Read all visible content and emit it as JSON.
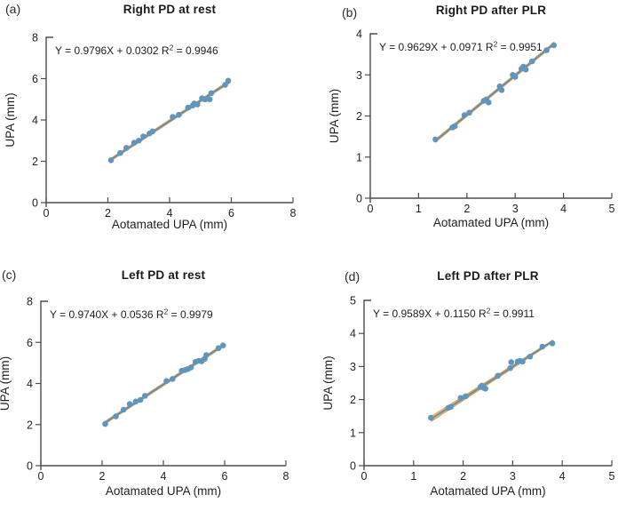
{
  "figure": {
    "background": "#ffffff",
    "xlabel_shared": "Aotamated UPA  (mm)",
    "ylabel_shared": "UPA  (mm)"
  },
  "colors": {
    "axis": "#4c4c4e",
    "text": "#1f1f21",
    "point_blue": "#6095bc",
    "line_blue": "#5b90b8",
    "line_orange": "#eca44e"
  },
  "chart_data": [
    {
      "id": "a",
      "type": "scatter",
      "panel_label": "(a)",
      "title": "Right PD at rest",
      "equation_lhs": "Y = 0.9796X + 0.0302",
      "r_squared": "0.9946",
      "xlabel": "Aotamated UPA  (mm)",
      "ylabel": "UPA  (mm)",
      "xlim": [
        0,
        8
      ],
      "ylim": [
        0,
        8
      ],
      "xticks": [
        0,
        2,
        4,
        6,
        8
      ],
      "yticks": [
        0,
        2,
        4,
        6,
        8
      ],
      "fit": {
        "slope": 0.9796,
        "intercept": 0.0302
      },
      "line_x": [
        2.05,
        5.95
      ],
      "ci_band": null,
      "points": [
        [
          2.1,
          2.05
        ],
        [
          2.4,
          2.4
        ],
        [
          2.6,
          2.65
        ],
        [
          2.85,
          2.9
        ],
        [
          3.0,
          3.0
        ],
        [
          3.15,
          3.2
        ],
        [
          3.35,
          3.35
        ],
        [
          3.45,
          3.45
        ],
        [
          4.1,
          4.15
        ],
        [
          4.3,
          4.25
        ],
        [
          4.6,
          4.6
        ],
        [
          4.75,
          4.7
        ],
        [
          4.8,
          4.8
        ],
        [
          4.9,
          4.75
        ],
        [
          5.05,
          5.05
        ],
        [
          5.15,
          5.0
        ],
        [
          5.3,
          5.0
        ],
        [
          5.35,
          5.3
        ],
        [
          5.8,
          5.7
        ],
        [
          5.9,
          5.9
        ]
      ]
    },
    {
      "id": "b",
      "type": "scatter",
      "panel_label": "(b)",
      "title": "Right PD after PLR",
      "equation_lhs": "Y = 0.9629X + 0.0971",
      "r_squared": "0.9951",
      "xlabel": "Aotamated UPA  (mm)",
      "ylabel": "UPA  (mm)",
      "xlim": [
        0,
        5
      ],
      "ylim": [
        0,
        4
      ],
      "xticks": [
        0,
        1,
        2,
        3,
        4,
        5
      ],
      "yticks": [
        0,
        1,
        2,
        3,
        4
      ],
      "fit": {
        "slope": 0.9629,
        "intercept": 0.0971
      },
      "line_x": [
        1.33,
        3.82
      ],
      "ci_band": null,
      "points": [
        [
          1.35,
          1.43
        ],
        [
          1.7,
          1.72
        ],
        [
          1.75,
          1.75
        ],
        [
          1.95,
          2.02
        ],
        [
          2.05,
          2.08
        ],
        [
          2.35,
          2.37
        ],
        [
          2.4,
          2.4
        ],
        [
          2.45,
          2.33
        ],
        [
          2.68,
          2.72
        ],
        [
          2.72,
          2.63
        ],
        [
          2.95,
          3.0
        ],
        [
          3.0,
          2.95
        ],
        [
          3.13,
          3.15
        ],
        [
          3.17,
          3.2
        ],
        [
          3.22,
          3.13
        ],
        [
          3.35,
          3.33
        ],
        [
          3.65,
          3.6
        ],
        [
          3.8,
          3.72
        ]
      ]
    },
    {
      "id": "c",
      "type": "scatter",
      "panel_label": "(c)",
      "title": "Left PD at rest",
      "equation_lhs": "Y = 0.9740X + 0.0536",
      "r_squared": "0.9979",
      "xlabel": "Aotamated UPA  (mm)",
      "ylabel": "UPA  (mm)",
      "xlim": [
        0,
        8
      ],
      "ylim": [
        0,
        8
      ],
      "xticks": [
        0,
        2,
        4,
        6,
        8
      ],
      "yticks": [
        0,
        2,
        4,
        6,
        8
      ],
      "fit": {
        "slope": 0.974,
        "intercept": 0.0536
      },
      "line_x": [
        2.05,
        5.97
      ],
      "ci_band": null,
      "points": [
        [
          2.1,
          2.03
        ],
        [
          2.45,
          2.4
        ],
        [
          2.7,
          2.72
        ],
        [
          2.9,
          3.0
        ],
        [
          3.1,
          3.12
        ],
        [
          3.25,
          3.2
        ],
        [
          3.4,
          3.4
        ],
        [
          4.1,
          4.12
        ],
        [
          4.3,
          4.22
        ],
        [
          4.6,
          4.62
        ],
        [
          4.7,
          4.65
        ],
        [
          4.8,
          4.7
        ],
        [
          4.9,
          4.78
        ],
        [
          5.05,
          5.05
        ],
        [
          5.15,
          5.1
        ],
        [
          5.25,
          5.08
        ],
        [
          5.35,
          5.2
        ],
        [
          5.4,
          5.38
        ],
        [
          5.8,
          5.72
        ],
        [
          5.95,
          5.85
        ]
      ]
    },
    {
      "id": "d",
      "type": "scatter",
      "panel_label": "(d)",
      "title": "Left PD after PLR",
      "equation_lhs": "Y = 0.9589X + 0.1150",
      "r_squared": "0.9911",
      "xlabel": "Aotamated UPA  (mm)",
      "ylabel": "UPA  (mm)",
      "xlim": [
        0,
        5
      ],
      "ylim": [
        0,
        5
      ],
      "xticks": [
        0,
        1,
        2,
        3,
        4,
        5
      ],
      "yticks": [
        0,
        1,
        2,
        3,
        4,
        5
      ],
      "fit": {
        "slope": 0.9589,
        "intercept": 0.115
      },
      "line_x": [
        1.35,
        3.82
      ],
      "ci_band": [
        0.065,
        0.02
      ],
      "points": [
        [
          1.35,
          1.45
        ],
        [
          1.7,
          1.75
        ],
        [
          1.75,
          1.78
        ],
        [
          1.95,
          2.05
        ],
        [
          2.05,
          2.1
        ],
        [
          2.35,
          2.38
        ],
        [
          2.38,
          2.42
        ],
        [
          2.42,
          2.35
        ],
        [
          2.45,
          2.33
        ],
        [
          2.7,
          2.72
        ],
        [
          2.95,
          2.95
        ],
        [
          2.97,
          3.13
        ],
        [
          3.1,
          3.15
        ],
        [
          3.15,
          3.17
        ],
        [
          3.2,
          3.15
        ],
        [
          3.35,
          3.3
        ],
        [
          3.6,
          3.6
        ],
        [
          3.8,
          3.7
        ]
      ]
    }
  ]
}
